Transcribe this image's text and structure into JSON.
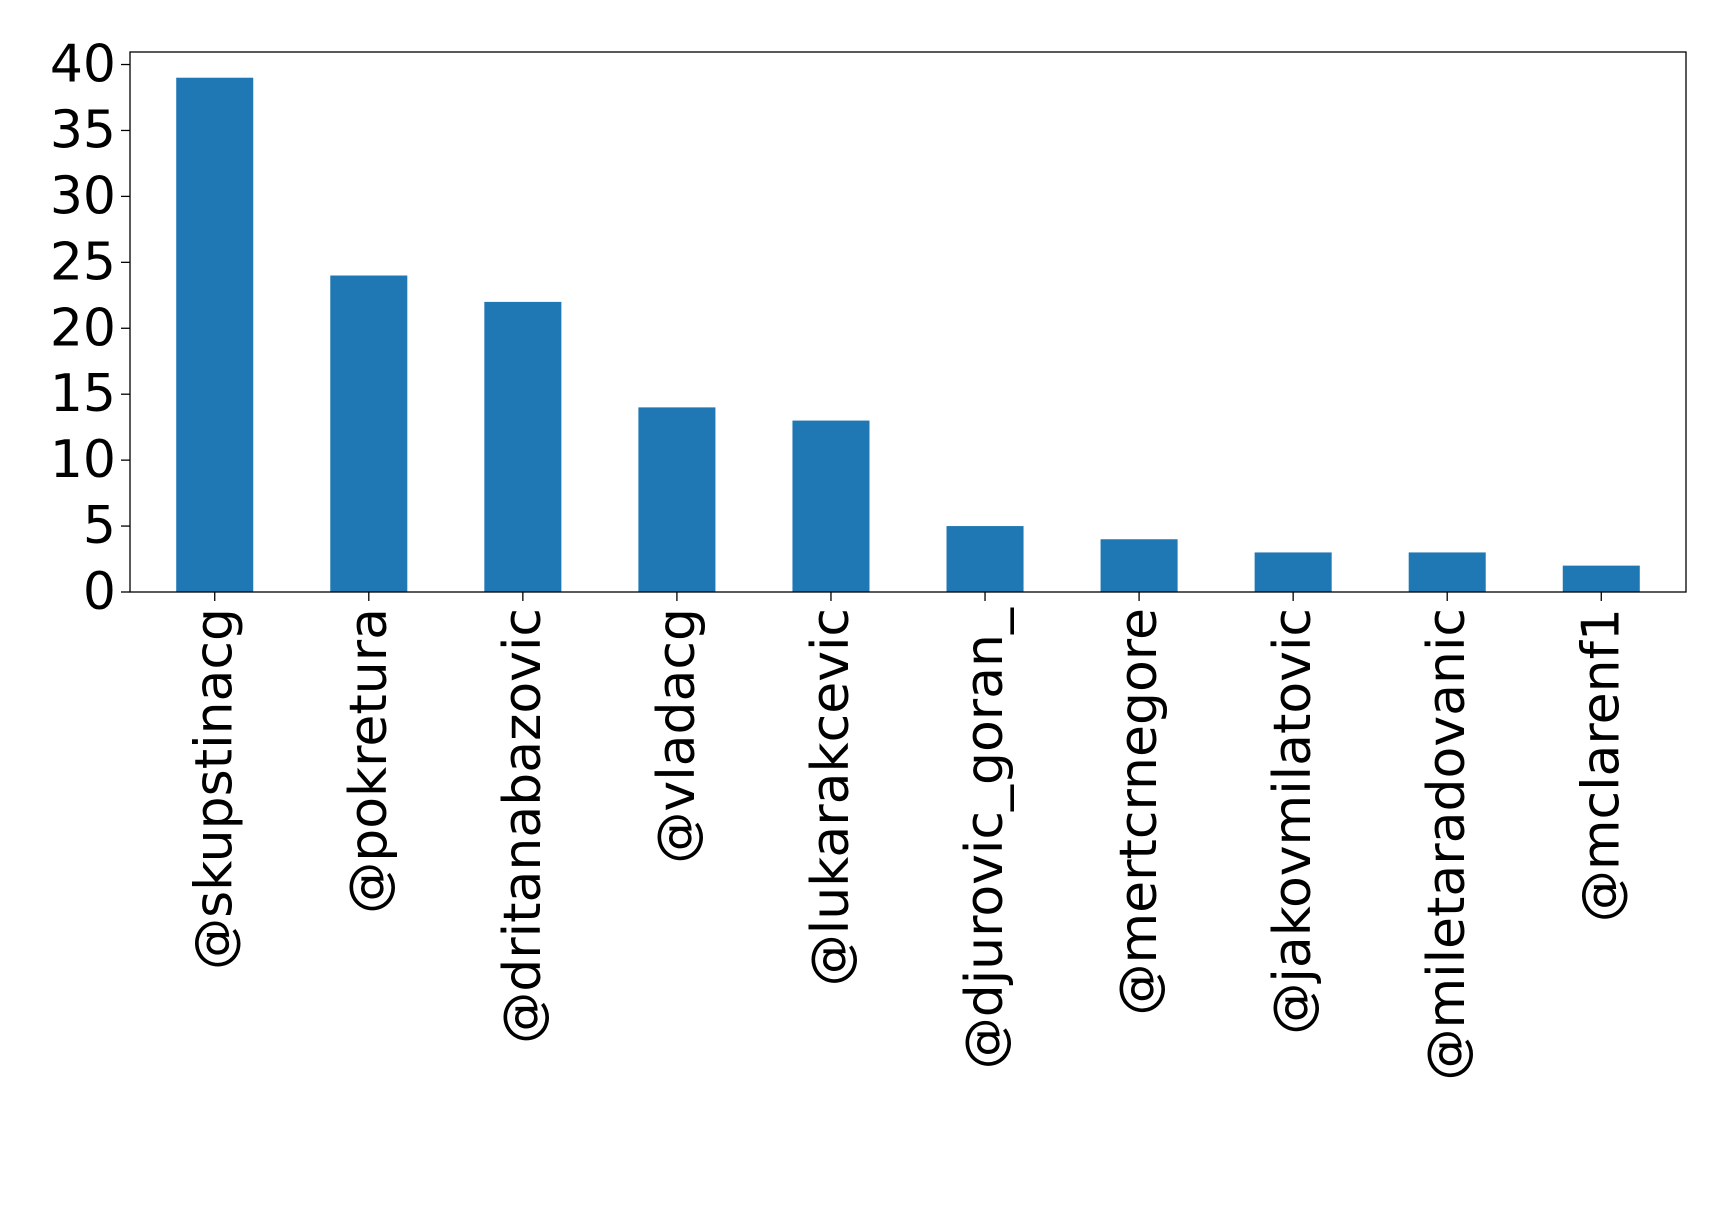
{
  "chart_data": {
    "type": "bar",
    "categories": [
      "@skupstinacg",
      "@pokretura",
      "@dritanabazovic",
      "@vladacg",
      "@lukarakcevic",
      "@djurovic_goran_",
      "@mertcrnegore",
      "@jakovmilatovic",
      "@miletaradovanic",
      "@mclarenf1"
    ],
    "values": [
      39,
      24,
      22,
      14,
      13,
      5,
      4,
      3,
      3,
      2
    ],
    "yticks": [
      "0",
      "5",
      "10",
      "15",
      "20",
      "25",
      "30",
      "35",
      "40"
    ],
    "ylim": [
      0,
      40.95
    ],
    "title": "",
    "xlabel": "",
    "ylabel": "",
    "bar_color": "#1f77b4",
    "grid": false,
    "legend": false
  }
}
